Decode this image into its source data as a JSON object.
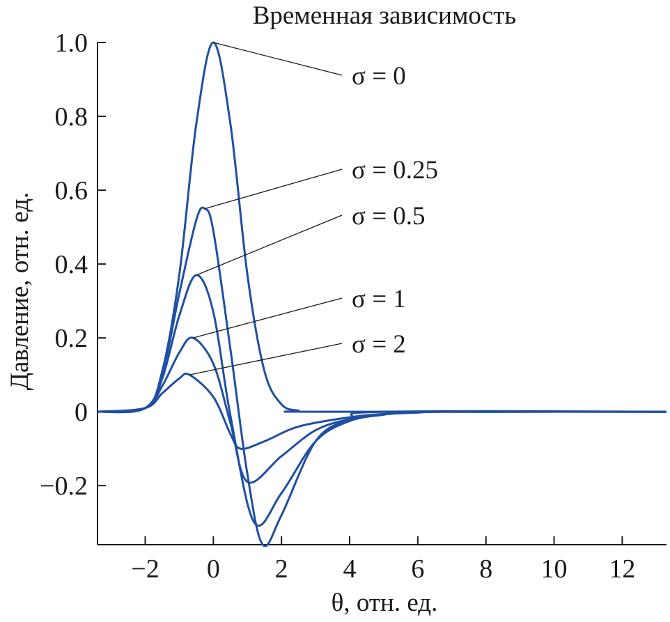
{
  "chart_data": {
    "type": "line",
    "title": "Временная зависимость",
    "xlabel": "θ, отн. ед.",
    "ylabel": "Давление, отн. ед.",
    "xlim": [
      -3.4,
      13.3
    ],
    "ylim": [
      -0.36,
      1.0
    ],
    "x_ticks": [
      -2,
      0,
      2,
      4,
      6,
      8,
      10,
      12
    ],
    "x_tick_labels": [
      "−2",
      "0",
      "2",
      "4",
      "6",
      "8",
      "10",
      "12"
    ],
    "y_ticks": [
      1.0,
      0.8,
      0.6,
      0.4,
      0.2,
      0,
      -0.2
    ],
    "y_tick_labels": [
      "1.0",
      "0.8",
      "0.6",
      "0.4",
      "0.2",
      "0",
      "−0.2"
    ],
    "grid": false,
    "line_color": "#1f4fa3",
    "series": [
      {
        "name": "σ = 0",
        "label": "σ = 0",
        "peak_x": 0.0,
        "peak_y": 1.0,
        "x": [
          -3.4,
          -2,
          -1.5,
          -1,
          -0.5,
          0,
          0.5,
          1,
          1.5,
          2,
          2.5,
          3,
          13.3
        ],
        "y": [
          0,
          0.01,
          0.11,
          0.37,
          0.78,
          1.0,
          0.78,
          0.37,
          0.11,
          0.02,
          0.003,
          0,
          0
        ]
      },
      {
        "name": "σ = 0.25",
        "label": "σ = 0.25",
        "peak_x": -0.25,
        "peak_y": 0.55,
        "x": [
          -3.4,
          -2,
          -1.5,
          -1,
          -0.5,
          -0.25,
          0,
          0.5,
          1,
          1.45,
          2,
          3,
          4,
          5,
          13.3
        ],
        "y": [
          0,
          0.01,
          0.1,
          0.32,
          0.52,
          0.55,
          0.49,
          0.17,
          -0.17,
          -0.36,
          -0.28,
          -0.08,
          -0.02,
          0,
          0
        ]
      },
      {
        "name": "σ = 0.5",
        "label": "σ = 0.5",
        "peak_x": -0.5,
        "peak_y": 0.37,
        "x": [
          -3.4,
          -2,
          -1.5,
          -1,
          -0.5,
          0,
          0.5,
          1.2,
          2,
          3,
          4,
          5,
          6,
          13.3
        ],
        "y": [
          0,
          0.01,
          0.09,
          0.26,
          0.37,
          0.27,
          -0.01,
          -0.3,
          -0.22,
          -0.08,
          -0.025,
          -0.008,
          0,
          0
        ]
      },
      {
        "name": "σ = 1",
        "label": "σ = 1",
        "peak_x": -0.6,
        "peak_y": 0.2,
        "x": [
          -3.4,
          -2,
          -1.5,
          -1,
          -0.6,
          0,
          0.5,
          1,
          2,
          3,
          4,
          5,
          6,
          7,
          13.3
        ],
        "y": [
          0,
          0.01,
          0.07,
          0.16,
          0.2,
          0.13,
          -0.03,
          -0.19,
          -0.12,
          -0.05,
          -0.02,
          -0.007,
          -0.002,
          0,
          0
        ]
      },
      {
        "name": "σ = 2",
        "label": "σ = 2",
        "peak_x": -0.7,
        "peak_y": 0.1,
        "x": [
          -3.4,
          -2,
          -1.5,
          -1,
          -0.7,
          0,
          0.5,
          0.8,
          1.5,
          2.5,
          4,
          5,
          6,
          7,
          13.3
        ],
        "y": [
          0,
          0.01,
          0.05,
          0.09,
          0.1,
          0.04,
          -0.06,
          -0.1,
          -0.08,
          -0.04,
          -0.015,
          -0.006,
          -0.002,
          0,
          0
        ]
      }
    ]
  }
}
